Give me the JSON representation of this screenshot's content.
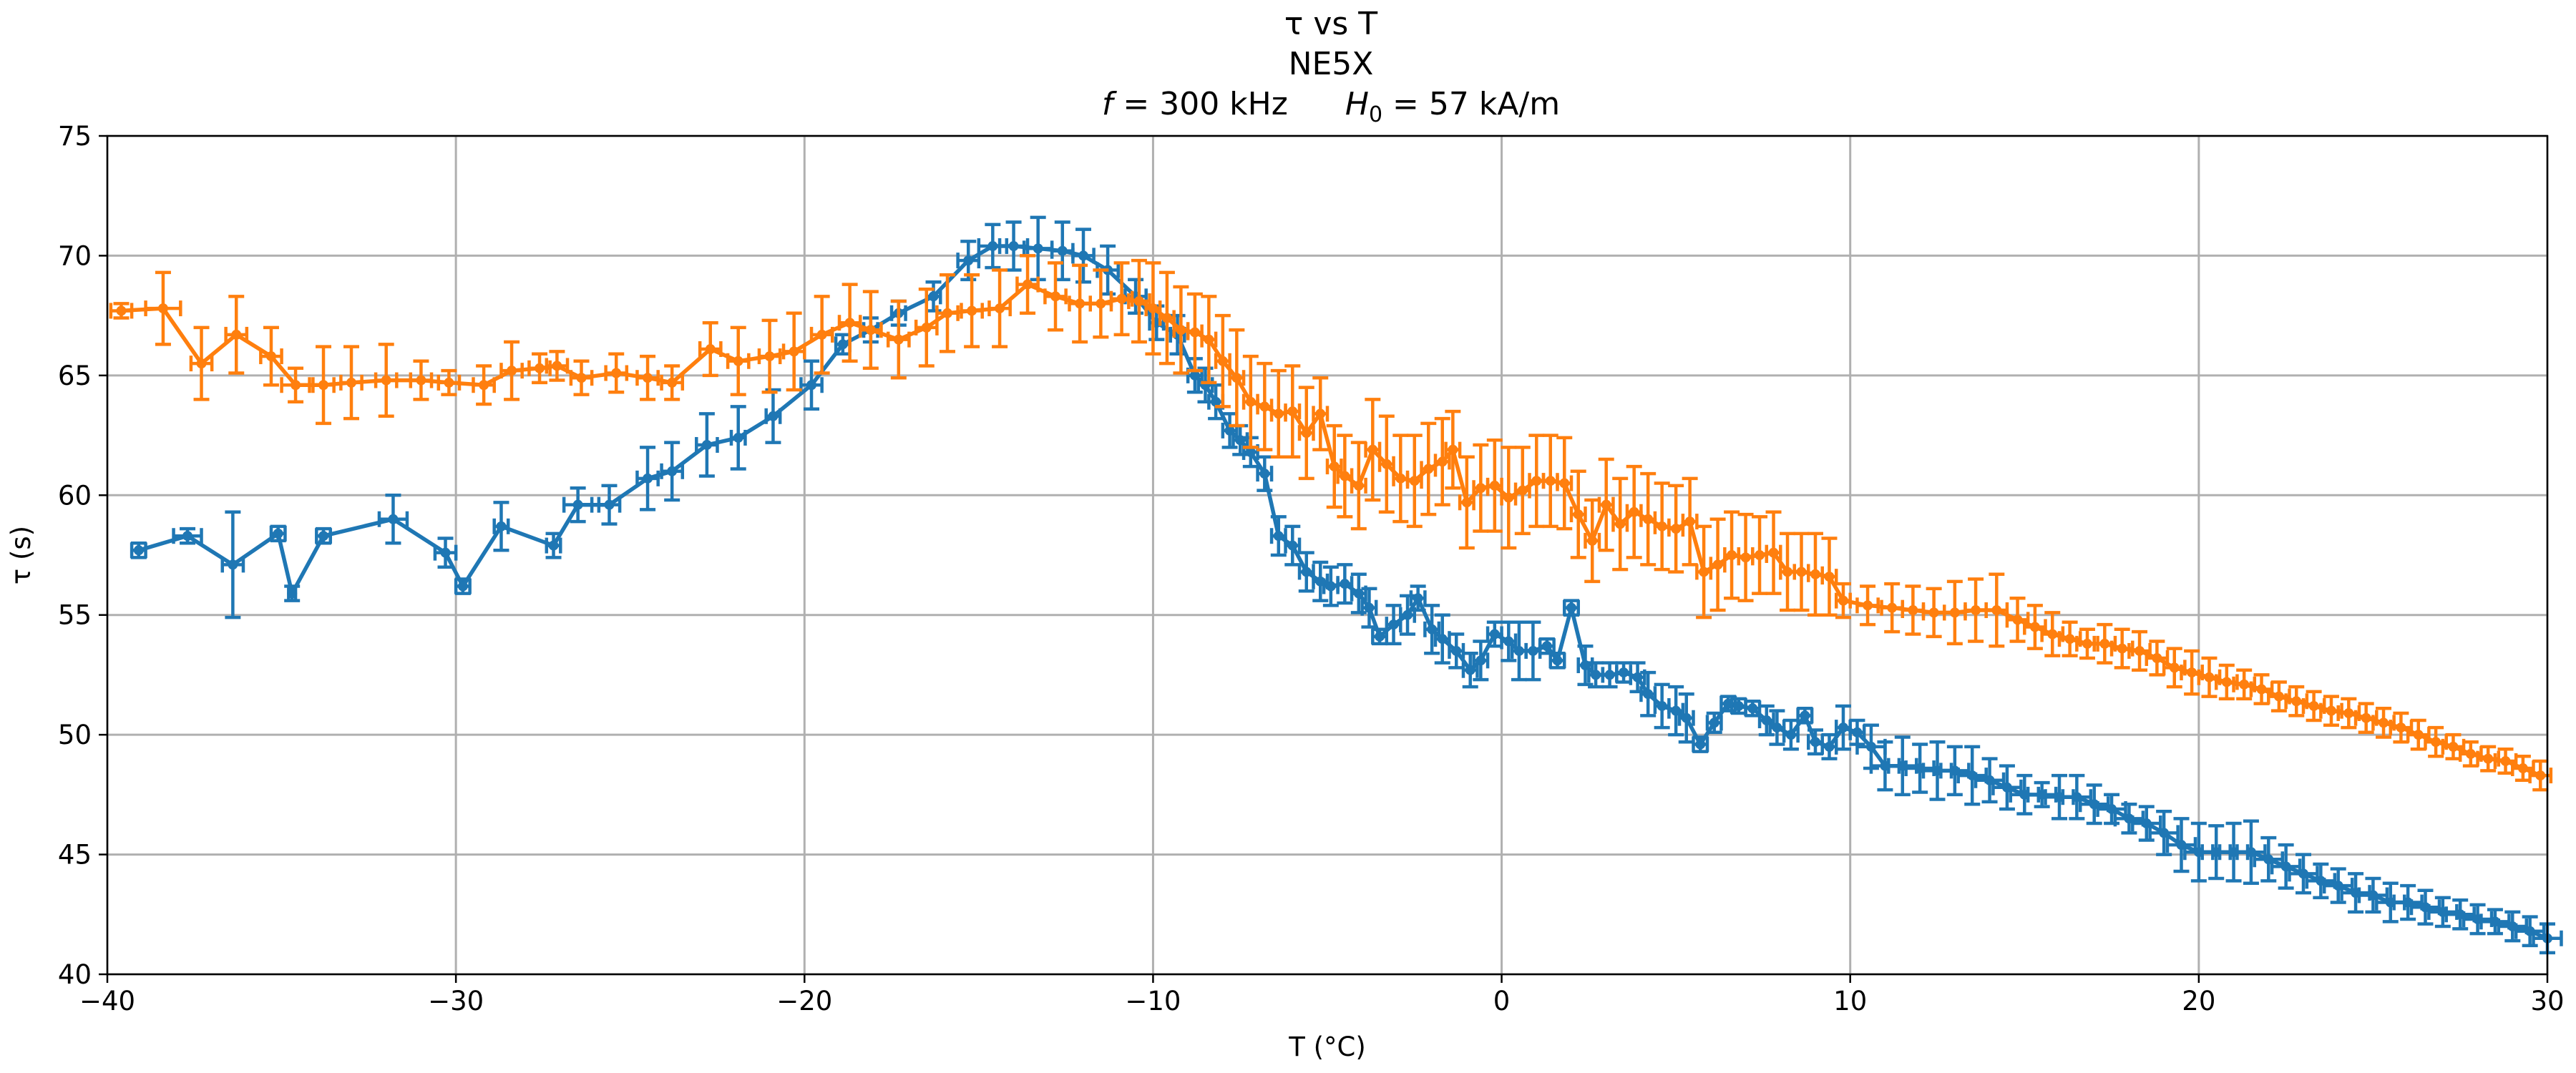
{
  "chart_data": {
    "type": "line",
    "title": "τ vs T",
    "subtitle": "NE5X",
    "params": {
      "f_symbol": "f",
      "f_value": " = 300 kHz",
      "h_symbol": "H",
      "h_sub": "0",
      "h_value": " = 57 kA/m"
    },
    "xlabel": "T (°C)",
    "ylabel": "τ (s)",
    "xlim": [
      -40,
      30
    ],
    "ylim": [
      40,
      75
    ],
    "xticks": [
      -40,
      -30,
      -20,
      -10,
      0,
      10,
      20,
      30
    ],
    "yticks": [
      40,
      45,
      50,
      55,
      60,
      65,
      70,
      75
    ],
    "xtick_labels": [
      "−40",
      "−30",
      "−20",
      "−10",
      "0",
      "10",
      "20",
      "30"
    ],
    "ytick_labels": [
      "40",
      "45",
      "50",
      "55",
      "60",
      "65",
      "70",
      "75"
    ],
    "grid": true,
    "legend": "none",
    "series": [
      {
        "color": "#1f77b4",
        "x": [
          -39.1,
          -37.7,
          -36.4,
          -35.1,
          -34.7,
          -33.8,
          -31.8,
          -30.3,
          -29.8,
          -28.7,
          -27.2,
          -26.5,
          -25.6,
          -24.5,
          -23.8,
          -22.8,
          -21.9,
          -20.9,
          -19.8,
          -18.9,
          -18.1,
          -17.3,
          -16.3,
          -15.3,
          -14.6,
          -14.0,
          -13.3,
          -12.6,
          -12.0,
          -11.3,
          -10.5,
          -9.9,
          -9.3,
          -8.8,
          -8.5,
          -8.2,
          -7.8,
          -7.5,
          -7.2,
          -6.8,
          -6.4,
          -6.0,
          -5.6,
          -5.2,
          -4.9,
          -4.5,
          -4.1,
          -3.8,
          -3.5,
          -3.1,
          -2.7,
          -2.4,
          -2.0,
          -1.7,
          -1.3,
          -0.9,
          -0.6,
          -0.2,
          0.2,
          0.5,
          0.9,
          1.3,
          1.6,
          2.0,
          2.4,
          2.7,
          3.1,
          3.5,
          3.9,
          4.2,
          4.6,
          5.0,
          5.3,
          5.7,
          6.1,
          6.5,
          6.8,
          7.2,
          7.6,
          7.9,
          8.3,
          8.7,
          9.0,
          9.4,
          9.8,
          10.2,
          10.6,
          11.0,
          11.5,
          12.0,
          12.5,
          13.0,
          13.5,
          14.0,
          14.5,
          15.0,
          15.5,
          16.0,
          16.5,
          17.0,
          17.5,
          18.0,
          18.5,
          19.0,
          19.5,
          20.0,
          20.5,
          21.0,
          21.5,
          22.0,
          22.5,
          23.0,
          23.5,
          24.0,
          24.5,
          25.0,
          25.5,
          26.0,
          26.5,
          27.0,
          27.5,
          28.0,
          28.5,
          29.0,
          29.5,
          30.0
        ],
        "y": [
          57.7,
          58.3,
          57.1,
          58.4,
          55.9,
          58.3,
          59.0,
          57.6,
          56.2,
          58.7,
          57.9,
          59.6,
          59.6,
          60.7,
          61.0,
          62.1,
          62.4,
          63.3,
          64.6,
          66.3,
          66.9,
          67.6,
          68.3,
          69.8,
          70.4,
          70.4,
          70.3,
          70.2,
          70.0,
          69.4,
          68.3,
          67.2,
          66.7,
          65.0,
          64.6,
          63.9,
          62.7,
          62.3,
          61.8,
          60.9,
          58.3,
          57.9,
          56.8,
          56.4,
          56.2,
          56.3,
          55.9,
          55.3,
          54.1,
          54.6,
          55.0,
          55.7,
          54.4,
          54.0,
          53.5,
          52.7,
          53.1,
          54.2,
          53.9,
          53.5,
          53.5,
          53.7,
          53.1,
          55.3,
          52.9,
          52.5,
          52.5,
          52.6,
          52.4,
          51.7,
          51.2,
          51.0,
          50.7,
          49.6,
          50.5,
          51.3,
          51.2,
          51.1,
          50.6,
          50.3,
          50.0,
          50.8,
          49.7,
          49.5,
          50.3,
          50.1,
          49.5,
          48.7,
          48.7,
          48.6,
          48.5,
          48.5,
          48.3,
          48.1,
          47.8,
          47.5,
          47.5,
          47.4,
          47.4,
          47.1,
          46.9,
          46.5,
          46.3,
          45.9,
          45.4,
          45.1,
          45.1,
          45.1,
          45.1,
          44.8,
          44.5,
          44.2,
          43.9,
          43.7,
          43.4,
          43.3,
          43.0,
          43.0,
          42.8,
          42.6,
          42.5,
          42.3,
          42.2,
          42.0,
          41.8,
          41.5
        ],
        "yerr": [
          0.3,
          0.3,
          2.2,
          0.3,
          0.3,
          0.3,
          1.0,
          0.6,
          0.3,
          1.0,
          0.5,
          0.7,
          0.8,
          1.3,
          1.2,
          1.3,
          1.3,
          1.1,
          1.0,
          0.4,
          0.5,
          0.5,
          0.6,
          0.8,
          0.9,
          1.0,
          1.3,
          1.2,
          1.1,
          1.0,
          0.7,
          0.7,
          0.8,
          0.7,
          0.7,
          0.7,
          0.7,
          0.6,
          0.6,
          0.7,
          0.8,
          0.8,
          0.8,
          0.8,
          0.8,
          0.8,
          0.8,
          0.8,
          0.3,
          0.8,
          0.8,
          0.5,
          1.0,
          1.0,
          0.7,
          0.7,
          0.8,
          0.5,
          0.8,
          1.2,
          1.2,
          0.3,
          0.3,
          0.3,
          0.8,
          0.5,
          0.5,
          0.4,
          0.6,
          0.9,
          0.9,
          1.0,
          1.0,
          0.3,
          0.4,
          0.3,
          0.3,
          0.3,
          0.6,
          0.7,
          0.6,
          0.3,
          0.5,
          0.5,
          0.9,
          0.5,
          0.9,
          1.0,
          1.2,
          1.0,
          1.2,
          1.0,
          1.2,
          0.9,
          0.9,
          0.8,
          0.5,
          0.9,
          0.9,
          0.8,
          0.6,
          0.6,
          0.7,
          0.9,
          1.1,
          1.2,
          1.1,
          1.2,
          1.3,
          0.9,
          0.9,
          0.8,
          0.7,
          0.7,
          0.8,
          0.7,
          0.8,
          0.7,
          0.7,
          0.6,
          0.6,
          0.6,
          0.5,
          0.6,
          0.6,
          0.6
        ],
        "xerr": [
          0.2,
          0.4,
          0.3,
          0.2,
          0.1,
          0.2,
          0.4,
          0.3,
          0.2,
          0.2,
          0.2,
          0.4,
          0.3,
          0.3,
          0.3,
          0.3,
          0.2,
          0.2,
          0.3,
          0.2,
          0.2,
          0.2,
          0.2,
          0.3,
          0.4,
          0.4,
          0.4,
          0.3,
          0.3,
          0.3,
          0.3,
          0.2,
          0.2,
          0.2,
          0.2,
          0.2,
          0.2,
          0.2,
          0.2,
          0.2,
          0.2,
          0.2,
          0.2,
          0.2,
          0.2,
          0.2,
          0.2,
          0.2,
          0.2,
          0.2,
          0.2,
          0.2,
          0.2,
          0.2,
          0.2,
          0.2,
          0.2,
          0.2,
          0.2,
          0.2,
          0.2,
          0.2,
          0.2,
          0.2,
          0.2,
          0.2,
          0.2,
          0.2,
          0.2,
          0.2,
          0.2,
          0.2,
          0.2,
          0.2,
          0.2,
          0.2,
          0.2,
          0.2,
          0.2,
          0.2,
          0.2,
          0.2,
          0.2,
          0.2,
          0.2,
          0.2,
          0.4,
          0.4,
          0.4,
          0.4,
          0.4,
          0.4,
          0.4,
          0.4,
          0.4,
          0.4,
          0.4,
          0.4,
          0.4,
          0.4,
          0.4,
          0.4,
          0.4,
          0.4,
          0.4,
          0.4,
          0.4,
          0.4,
          0.4,
          0.4,
          0.4,
          0.4,
          0.4,
          0.4,
          0.4,
          0.4,
          0.4,
          0.4,
          0.4,
          0.4,
          0.4,
          0.4,
          0.4,
          0.4,
          0.4,
          0.4
        ]
      },
      {
        "color": "#ff7f0e",
        "x": [
          -39.6,
          -38.4,
          -37.3,
          -36.3,
          -35.3,
          -34.6,
          -33.8,
          -33.0,
          -32.0,
          -31.0,
          -30.2,
          -29.2,
          -28.4,
          -27.6,
          -27.1,
          -26.4,
          -25.4,
          -24.5,
          -23.8,
          -22.7,
          -21.9,
          -21.0,
          -20.3,
          -19.5,
          -18.7,
          -18.1,
          -17.3,
          -16.5,
          -15.9,
          -15.2,
          -14.4,
          -13.6,
          -12.8,
          -12.1,
          -11.5,
          -10.9,
          -10.4,
          -10.0,
          -9.6,
          -9.2,
          -8.8,
          -8.4,
          -8.0,
          -7.6,
          -7.2,
          -6.8,
          -6.4,
          -6.0,
          -5.6,
          -5.2,
          -4.8,
          -4.5,
          -4.1,
          -3.7,
          -3.3,
          -2.9,
          -2.5,
          -2.1,
          -1.7,
          -1.4,
          -1.0,
          -0.6,
          -0.2,
          0.2,
          0.6,
          1.0,
          1.4,
          1.8,
          2.2,
          2.6,
          3.0,
          3.4,
          3.8,
          4.2,
          4.6,
          5.0,
          5.4,
          5.8,
          6.2,
          6.6,
          7.0,
          7.4,
          7.8,
          8.2,
          8.6,
          9.0,
          9.4,
          9.8,
          10.5,
          11.2,
          11.8,
          12.4,
          13.0,
          13.6,
          14.2,
          14.8,
          15.3,
          15.8,
          16.3,
          16.8,
          17.3,
          17.8,
          18.3,
          18.8,
          19.3,
          19.8,
          20.3,
          20.8,
          21.3,
          21.8,
          22.3,
          22.8,
          23.3,
          23.8,
          24.3,
          24.8,
          25.3,
          25.8,
          26.3,
          26.8,
          27.3,
          27.8,
          28.3,
          28.8,
          29.3,
          29.8
        ],
        "y": [
          67.7,
          67.8,
          65.5,
          66.7,
          65.8,
          64.6,
          64.6,
          64.7,
          64.8,
          64.8,
          64.7,
          64.6,
          65.2,
          65.3,
          65.4,
          64.9,
          65.1,
          64.9,
          64.7,
          66.1,
          65.6,
          65.8,
          66.0,
          66.7,
          67.2,
          66.9,
          66.5,
          67.0,
          67.6,
          67.7,
          67.8,
          68.8,
          68.3,
          68.0,
          68.0,
          68.2,
          68.1,
          67.8,
          67.4,
          66.9,
          66.8,
          66.5,
          65.6,
          64.9,
          63.9,
          63.7,
          63.4,
          63.5,
          62.6,
          63.4,
          61.2,
          60.8,
          60.4,
          61.9,
          61.3,
          60.7,
          60.6,
          61.1,
          61.4,
          61.9,
          59.7,
          60.3,
          60.4,
          59.9,
          60.2,
          60.6,
          60.6,
          60.5,
          59.2,
          58.1,
          59.6,
          58.8,
          59.3,
          59.0,
          58.7,
          58.6,
          58.9,
          56.8,
          57.1,
          57.5,
          57.4,
          57.5,
          57.6,
          56.8,
          56.8,
          56.7,
          56.6,
          55.6,
          55.4,
          55.3,
          55.2,
          55.1,
          55.1,
          55.2,
          55.2,
          54.8,
          54.5,
          54.2,
          54.0,
          53.8,
          53.8,
          53.6,
          53.5,
          53.2,
          52.8,
          52.6,
          52.4,
          52.2,
          52.1,
          51.9,
          51.6,
          51.4,
          51.2,
          51.0,
          50.9,
          50.7,
          50.5,
          50.3,
          50.0,
          49.7,
          49.5,
          49.2,
          49.0,
          48.9,
          48.6,
          48.3
        ],
        "yerr": [
          0.3,
          1.5,
          1.5,
          1.6,
          1.2,
          0.7,
          1.6,
          1.5,
          1.5,
          0.8,
          0.5,
          0.8,
          1.2,
          0.6,
          0.6,
          0.7,
          0.8,
          0.9,
          0.7,
          1.1,
          1.4,
          1.5,
          1.6,
          1.6,
          1.6,
          1.6,
          1.6,
          1.6,
          1.6,
          1.5,
          1.6,
          1.2,
          1.4,
          1.6,
          1.4,
          1.5,
          1.7,
          1.9,
          1.9,
          1.8,
          1.6,
          1.8,
          1.9,
          2.0,
          1.9,
          1.8,
          1.8,
          1.9,
          1.9,
          1.5,
          1.7,
          1.7,
          1.8,
          2.1,
          2.0,
          1.8,
          1.9,
          1.9,
          1.8,
          1.6,
          1.9,
          1.8,
          1.9,
          2.1,
          1.8,
          1.9,
          1.9,
          1.9,
          1.8,
          1.7,
          1.9,
          1.9,
          1.9,
          1.9,
          1.8,
          1.8,
          1.8,
          1.9,
          1.9,
          1.8,
          1.8,
          1.6,
          1.7,
          1.6,
          1.6,
          1.7,
          1.6,
          0.7,
          0.8,
          1.0,
          1.0,
          1.0,
          1.3,
          1.3,
          1.5,
          0.9,
          0.9,
          0.9,
          0.7,
          0.6,
          0.8,
          0.8,
          0.8,
          0.7,
          0.8,
          0.9,
          0.8,
          0.7,
          0.6,
          0.6,
          0.6,
          0.6,
          0.6,
          0.6,
          0.6,
          0.6,
          0.6,
          0.6,
          0.6,
          0.6,
          0.5,
          0.5,
          0.5,
          0.5,
          0.5,
          0.6
        ],
        "xerr": [
          0.3,
          0.5,
          0.3,
          0.3,
          0.3,
          0.4,
          0.3,
          0.3,
          0.3,
          0.3,
          0.3,
          0.3,
          0.3,
          0.3,
          0.3,
          0.3,
          0.3,
          0.3,
          0.3,
          0.3,
          0.3,
          0.3,
          0.3,
          0.3,
          0.3,
          0.3,
          0.3,
          0.3,
          0.3,
          0.3,
          0.3,
          0.3,
          0.3,
          0.3,
          0.3,
          0.3,
          0.3,
          0.2,
          0.2,
          0.2,
          0.2,
          0.2,
          0.2,
          0.2,
          0.2,
          0.2,
          0.2,
          0.2,
          0.2,
          0.2,
          0.2,
          0.2,
          0.2,
          0.2,
          0.2,
          0.2,
          0.2,
          0.2,
          0.2,
          0.2,
          0.2,
          0.2,
          0.2,
          0.2,
          0.2,
          0.2,
          0.2,
          0.2,
          0.2,
          0.2,
          0.2,
          0.2,
          0.2,
          0.2,
          0.2,
          0.2,
          0.2,
          0.2,
          0.2,
          0.2,
          0.2,
          0.2,
          0.2,
          0.2,
          0.2,
          0.2,
          0.2,
          0.2,
          0.3,
          0.3,
          0.3,
          0.3,
          0.3,
          0.3,
          0.3,
          0.3,
          0.3,
          0.3,
          0.3,
          0.3,
          0.3,
          0.3,
          0.3,
          0.3,
          0.3,
          0.3,
          0.3,
          0.3,
          0.3,
          0.3,
          0.3,
          0.3,
          0.3,
          0.3,
          0.3,
          0.3,
          0.3,
          0.3,
          0.3,
          0.3,
          0.3,
          0.3,
          0.3,
          0.3,
          0.3,
          0.3
        ]
      }
    ]
  }
}
